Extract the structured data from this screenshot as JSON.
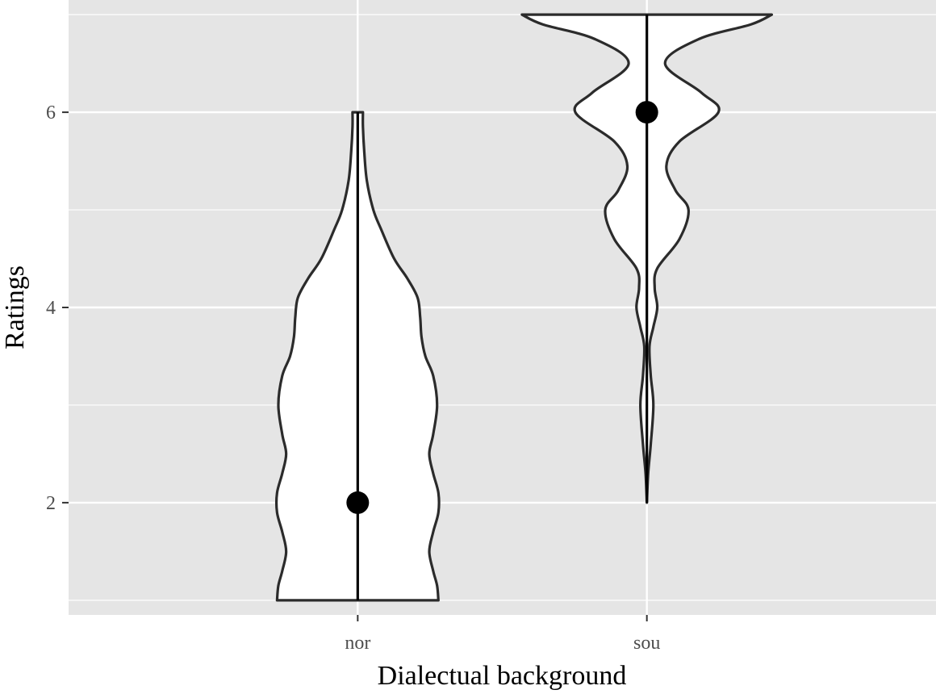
{
  "chart_data": {
    "type": "violin",
    "xlabel": "Dialectual background",
    "ylabel": "Ratings",
    "categories": [
      "nor",
      "sou"
    ],
    "ylim": [
      0.85,
      7.15
    ],
    "yticks": [
      2,
      4,
      6
    ],
    "yticks_labels": [
      "2",
      "4",
      "6"
    ],
    "grid": true,
    "background_color": "#e5e5e5",
    "grid_color": "#ffffff",
    "violin_fill": "#ffffff",
    "violin_stroke": "#2b2b2b",
    "groups": [
      {
        "category": "nor",
        "range": [
          1,
          6
        ],
        "median": 2,
        "density_profile": [
          [
            1.0,
            0.62
          ],
          [
            1.15,
            0.61
          ],
          [
            1.3,
            0.58
          ],
          [
            1.5,
            0.55
          ],
          [
            1.7,
            0.58
          ],
          [
            1.9,
            0.62
          ],
          [
            2.1,
            0.62
          ],
          [
            2.3,
            0.58
          ],
          [
            2.5,
            0.55
          ],
          [
            2.7,
            0.58
          ],
          [
            3.0,
            0.61
          ],
          [
            3.3,
            0.58
          ],
          [
            3.5,
            0.52
          ],
          [
            3.7,
            0.49
          ],
          [
            3.9,
            0.48
          ],
          [
            4.1,
            0.46
          ],
          [
            4.3,
            0.38
          ],
          [
            4.5,
            0.28
          ],
          [
            4.8,
            0.18
          ],
          [
            5.0,
            0.12
          ],
          [
            5.3,
            0.07
          ],
          [
            5.6,
            0.05
          ],
          [
            5.85,
            0.04
          ],
          [
            6.0,
            0.04
          ]
        ]
      },
      {
        "category": "sou",
        "range": [
          2,
          7
        ],
        "median": 6,
        "density_profile": [
          [
            2.0,
            0.0
          ],
          [
            2.3,
            0.01
          ],
          [
            2.6,
            0.03
          ],
          [
            3.0,
            0.05
          ],
          [
            3.3,
            0.03
          ],
          [
            3.6,
            0.02
          ],
          [
            3.8,
            0.05
          ],
          [
            4.0,
            0.08
          ],
          [
            4.2,
            0.06
          ],
          [
            4.4,
            0.08
          ],
          [
            4.7,
            0.25
          ],
          [
            5.0,
            0.32
          ],
          [
            5.2,
            0.22
          ],
          [
            5.45,
            0.15
          ],
          [
            5.7,
            0.25
          ],
          [
            6.0,
            0.55
          ],
          [
            6.2,
            0.42
          ],
          [
            6.5,
            0.14
          ],
          [
            6.75,
            0.4
          ],
          [
            6.9,
            0.8
          ],
          [
            7.0,
            0.96
          ]
        ]
      }
    ]
  }
}
